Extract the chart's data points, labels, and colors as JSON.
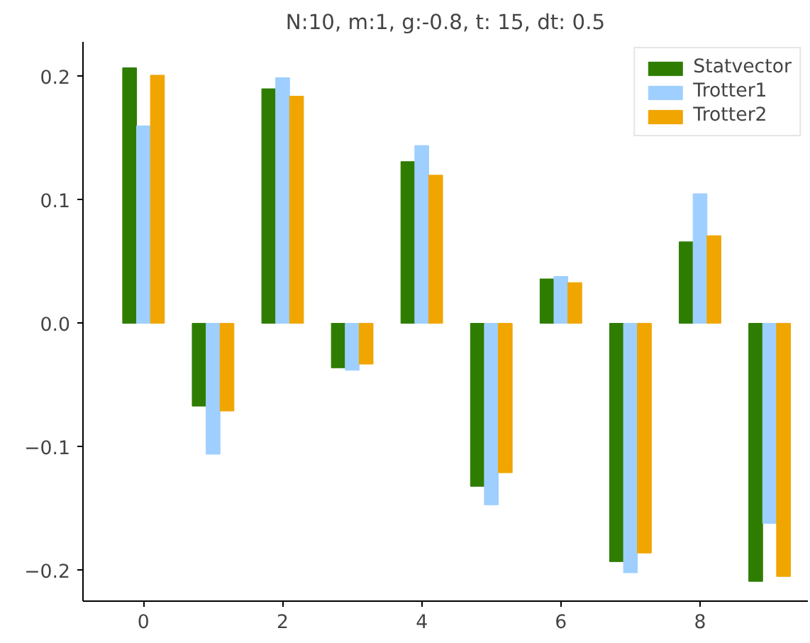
{
  "chart_data": {
    "type": "bar",
    "title": "N:10, m:1, g:-0.8, t: 15, dt: 0.5",
    "x": [
      0,
      1,
      2,
      3,
      4,
      5,
      6,
      7,
      8,
      9
    ],
    "series": [
      {
        "name": "Statvector",
        "color": "#2e7d00",
        "values": [
          0.207,
          -0.067,
          0.19,
          -0.036,
          0.131,
          -0.132,
          0.036,
          -0.193,
          0.066,
          -0.209
        ]
      },
      {
        "name": "Trotter1",
        "color": "#9ecfff",
        "values": [
          0.16,
          -0.106,
          0.199,
          -0.038,
          0.144,
          -0.147,
          0.038,
          -0.202,
          0.105,
          -0.162
        ]
      },
      {
        "name": "Trotter2",
        "color": "#f0a500",
        "values": [
          0.201,
          -0.071,
          0.184,
          -0.033,
          0.12,
          -0.121,
          0.033,
          -0.186,
          0.071,
          -0.205
        ]
      }
    ],
    "xlim": [
      -0.87,
      9.55
    ],
    "ylim": [
      -0.225,
      0.228
    ],
    "xticks": [
      0,
      2,
      4,
      6,
      8
    ],
    "yticks": [
      {
        "value": -0.2,
        "label": "−0.2"
      },
      {
        "value": -0.1,
        "label": "−0.1"
      },
      {
        "value": 0,
        "label": "0.0"
      },
      0.1,
      0.2
    ],
    "legend": "top right",
    "grid": false
  }
}
